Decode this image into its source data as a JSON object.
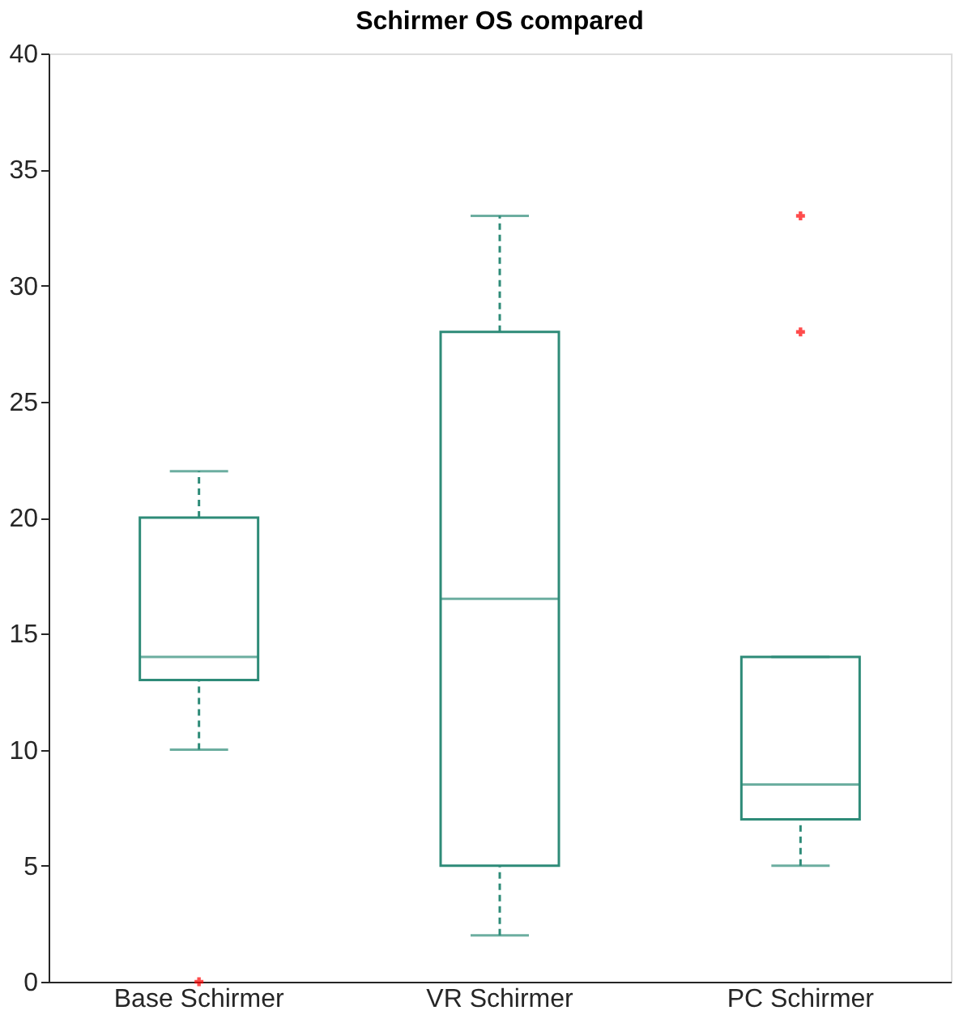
{
  "chart_data": {
    "type": "box",
    "title": "Schirmer OS compared",
    "categories": [
      "Base Schirmer",
      "VR Schirmer",
      "PC Schirmer"
    ],
    "series": [
      {
        "color": "#2e8b78",
        "boxes": [
          {
            "low": 10,
            "q1": 13,
            "median": 14,
            "q3": 20,
            "high": 22,
            "outliers": [
              0
            ]
          },
          {
            "low": 2,
            "q1": 5,
            "median": 16.5,
            "q3": 28,
            "high": 33
          },
          {
            "low": 5,
            "q1": 7,
            "median": 8.5,
            "q3": 14,
            "high": 14,
            "outliers": [
              28,
              33
            ]
          }
        ]
      }
    ],
    "ylim": [
      0,
      40
    ],
    "yticks": [
      0,
      5,
      10,
      15,
      20,
      25,
      30,
      35,
      40
    ],
    "grid": false,
    "marker": "cross"
  }
}
